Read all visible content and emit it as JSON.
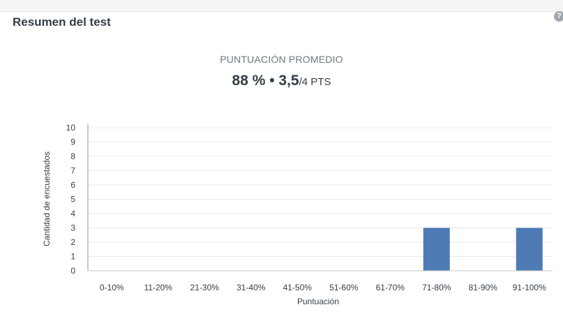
{
  "card": {
    "title": "Resumen del test",
    "help_icon": "question-circle-icon",
    "help_glyph": "?"
  },
  "summary": {
    "label": "PUNTUACIÓN PROMEDIO",
    "percent": "88 %",
    "separator": " • ",
    "score": "3,5",
    "max": "/4 PTS"
  },
  "colors": {
    "bar": "#4e7bb5",
    "grid": "#e8e8e8",
    "axis": "#c9c9c9"
  },
  "chart_data": {
    "type": "bar",
    "categories": [
      "0-10%",
      "11-20%",
      "21-30%",
      "31-40%",
      "41-50%",
      "51-60%",
      "61-70%",
      "71-80%",
      "81-90%",
      "91-100%"
    ],
    "values": [
      0,
      0,
      0,
      0,
      0,
      0,
      0,
      3,
      0,
      3
    ],
    "xlabel": "Puntuación",
    "ylabel": "Cantidad de encuestados",
    "ylim": [
      0,
      10
    ],
    "yticks": [
      0,
      1,
      2,
      3,
      4,
      5,
      6,
      7,
      8,
      9,
      10
    ],
    "grid": true
  }
}
